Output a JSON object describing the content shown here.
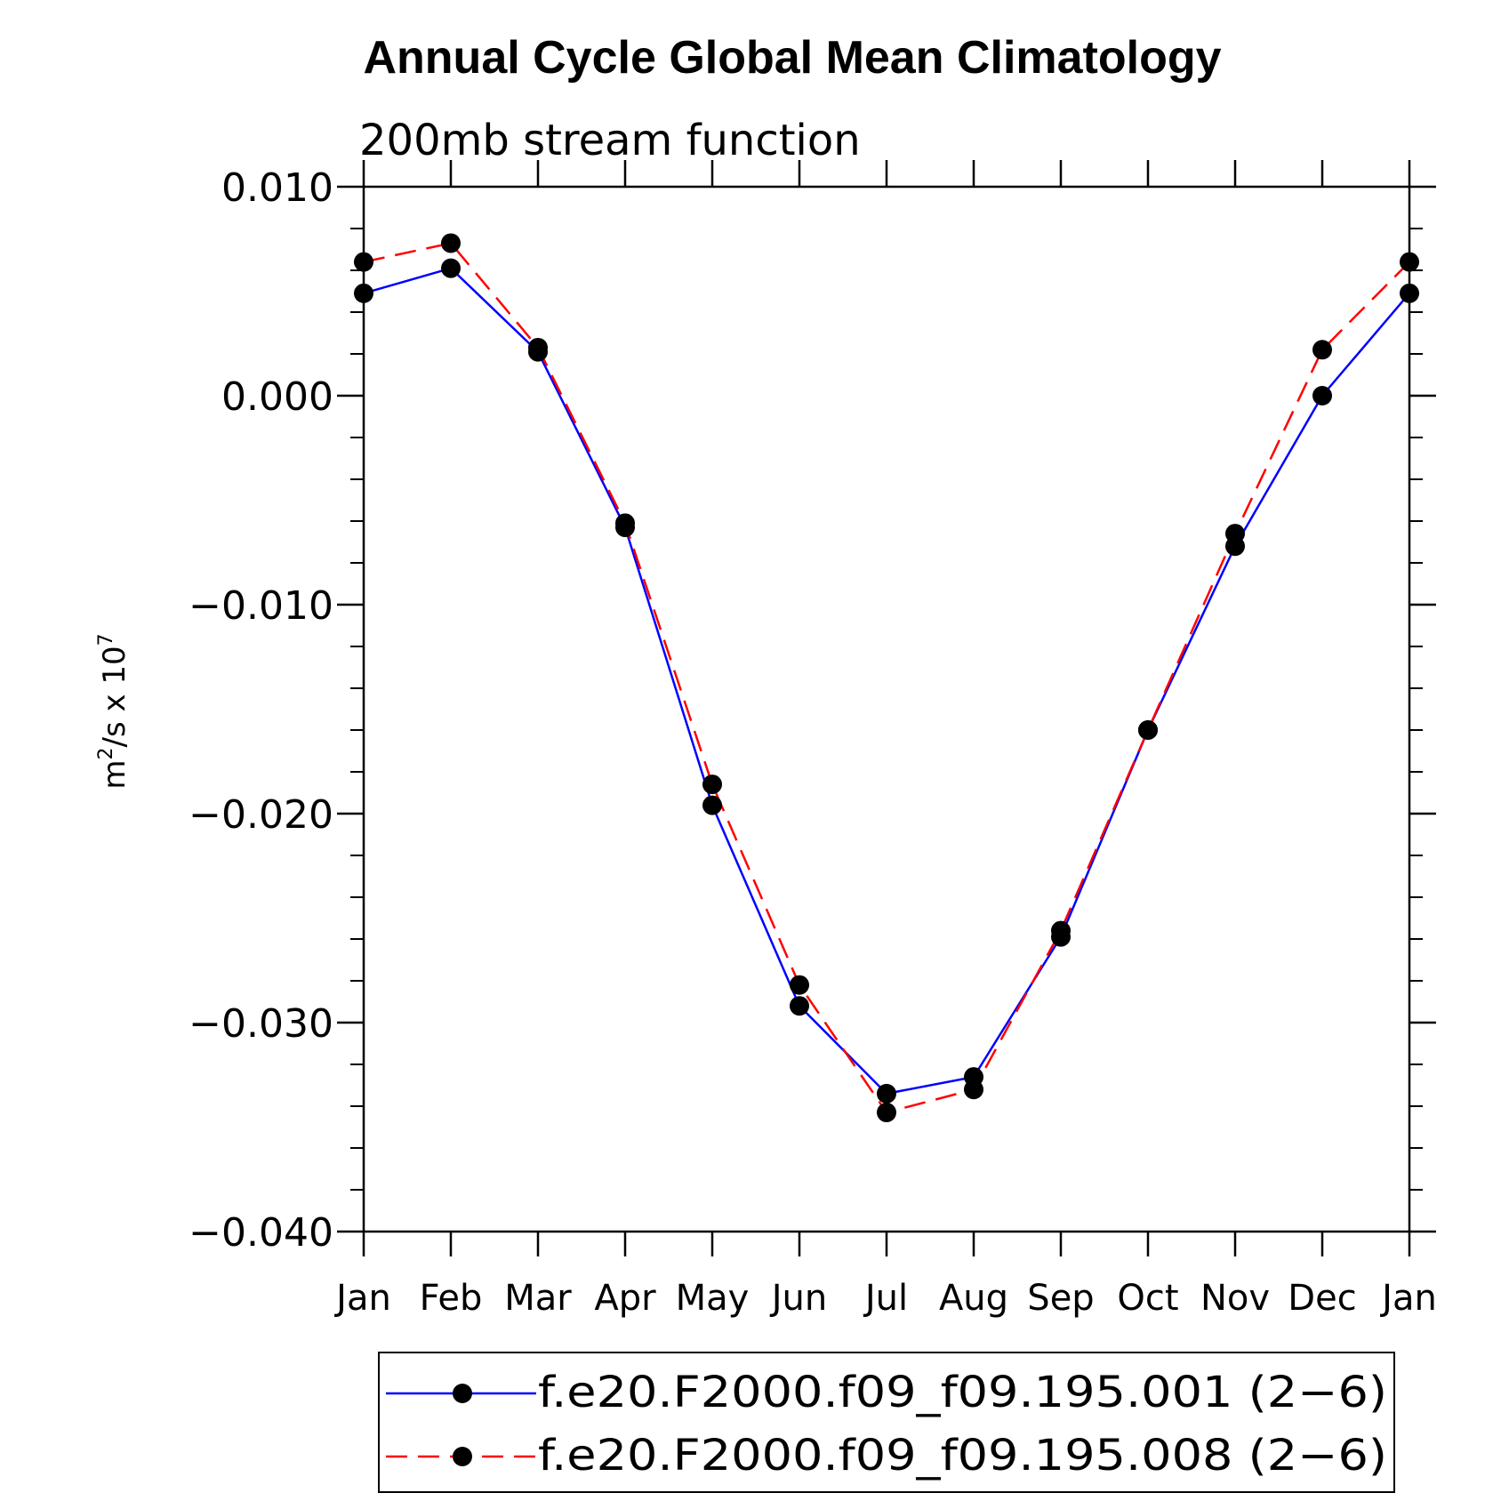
{
  "chart_data": {
    "type": "line",
    "title": "Annual Cycle Global Mean Climatology",
    "subtitle": "200mb stream function",
    "ylabel": "m²/s x 10⁷",
    "ylabel_parts": {
      "base": "m",
      "sup1": "2",
      "mid": "/s x 10",
      "sup2": "7"
    },
    "xlabel": "",
    "categories": [
      "Jan",
      "Feb",
      "Mar",
      "Apr",
      "May",
      "Jun",
      "Jul",
      "Aug",
      "Sep",
      "Oct",
      "Nov",
      "Dec",
      "Jan"
    ],
    "ylim": [
      -0.04,
      0.01
    ],
    "yticks": [
      0.01,
      0.0,
      -0.01,
      -0.02,
      -0.03,
      -0.04
    ],
    "ytick_labels": [
      "0.010",
      "0.000",
      "−0.010",
      "−0.020",
      "−0.030",
      "−0.040"
    ],
    "grid": false,
    "legend_position": "bottom",
    "series": [
      {
        "name": "f.e20.F2000.f09_f09.195.001 (2−6)",
        "color": "#0000ff",
        "dash": "solid",
        "marker": "filled-circle",
        "values": [
          0.0049,
          0.0061,
          0.0021,
          -0.0063,
          -0.0196,
          -0.0292,
          -0.0334,
          -0.0326,
          -0.0259,
          -0.016,
          -0.0072,
          0.0,
          0.0049
        ]
      },
      {
        "name": "f.e20.F2000.f09_f09.195.008 (2−6)",
        "color": "#ff0000",
        "dash": "dashed",
        "marker": "filled-circle",
        "values": [
          0.0064,
          0.0073,
          0.0023,
          -0.0061,
          -0.0186,
          -0.0282,
          -0.0343,
          -0.0332,
          -0.0256,
          -0.016,
          -0.0066,
          0.0022,
          0.0064
        ]
      }
    ]
  }
}
